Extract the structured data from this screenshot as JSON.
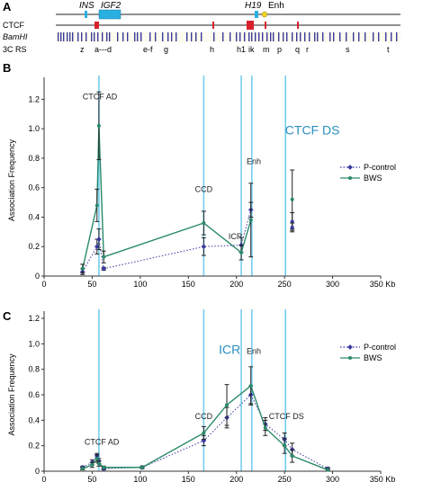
{
  "panel_a": {
    "panel_letter": "A",
    "row_labels": [
      "CTCF",
      "BamHI",
      "3C RS"
    ],
    "gene_labels": [
      "INS",
      "IGF2",
      "H19",
      "Enh"
    ],
    "rs_labels": [
      "z",
      "a---d",
      "e-f",
      "g",
      "h",
      "h1",
      "ik",
      "m",
      "p",
      "q",
      "r",
      "s",
      "t"
    ],
    "colors": {
      "gene": "#2ab0e0",
      "ctcf_site": "#d9202a",
      "bamhi": "#3a3a9a",
      "enh": "#f2d22a"
    }
  },
  "chart_data": [
    {
      "type": "line",
      "panel_letter": "B",
      "ylabel": "Association Frequency",
      "xunit": "350 Kb",
      "xlim": [
        0,
        350
      ],
      "ylim": [
        0,
        1.3
      ],
      "xticks": [
        0,
        50,
        100,
        150,
        200,
        250,
        300
      ],
      "yticks": [
        0,
        0.2,
        0.4,
        0.6,
        0.8,
        1.0,
        1.2
      ],
      "ytick_labels": [
        "0",
        "0.2",
        "0.4",
        "0.6",
        "0.8",
        "1.0",
        "1.2"
      ],
      "vlines": [
        57,
        166,
        205,
        216,
        251
      ],
      "legend_position": "right",
      "series": [
        {
          "name": "P-control",
          "color": "#3a3aa0",
          "style": "dotted",
          "x": [
            40,
            55,
            57,
            62,
            166,
            205,
            215
          ],
          "y": [
            0.03,
            0.2,
            0.25,
            0.05,
            0.2,
            0.21,
            0.45
          ],
          "err": [
            0.02,
            0.05,
            0.07,
            0.01,
            0.06,
            0.05,
            0.05
          ]
        },
        {
          "name": "BWS",
          "color": "#2a8a6a",
          "style": "solid",
          "x": [
            40,
            55,
            57,
            62,
            166,
            205,
            215
          ],
          "y": [
            0.05,
            0.48,
            1.02,
            0.13,
            0.36,
            0.16,
            0.38
          ],
          "err": [
            0.03,
            0.11,
            0.23,
            0.04,
            0.08,
            0.05,
            0.25
          ]
        }
      ],
      "unconnected_points": [
        {
          "x": 258,
          "y": 0.52,
          "err": 0.2,
          "color": "#2a8a6a"
        },
        {
          "x": 258,
          "y": 0.37,
          "err": 0.06,
          "color": "#3a3aa0"
        },
        {
          "x": 258,
          "y": 0.33,
          "err": 0.03,
          "color": "#3a3aa0"
        }
      ],
      "annotations": [
        {
          "text": "CTCF AD",
          "x": 58,
          "y": 1.2,
          "size": "small",
          "color": "#222"
        },
        {
          "text": "CCD",
          "x": 166,
          "y": 0.57,
          "size": "small",
          "color": "#222"
        },
        {
          "text": "ICR",
          "x": 199,
          "y": 0.25,
          "size": "small",
          "color": "#222"
        },
        {
          "text": "Enh",
          "x": 218,
          "y": 0.76,
          "size": "small",
          "color": "#222"
        },
        {
          "text": "CTCF DS",
          "x": 279,
          "y": 0.96,
          "size": "large",
          "color": "#2a8fc0"
        }
      ]
    },
    {
      "type": "line",
      "panel_letter": "C",
      "ylabel": "Association Frequency",
      "xunit": "350 Kb",
      "xlim": [
        0,
        350
      ],
      "ylim": [
        0,
        1.2
      ],
      "xticks": [
        0,
        50,
        100,
        150,
        200,
        250,
        300
      ],
      "yticks": [
        0,
        0.2,
        0.4,
        0.6,
        0.8,
        1.0,
        1.2
      ],
      "ytick_labels": [
        "0",
        "0.2",
        "0.4",
        "0.6",
        "0.8",
        "1.0",
        "1.2"
      ],
      "vlines": [
        57,
        166,
        205,
        216,
        251
      ],
      "legend_position": "right",
      "series": [
        {
          "name": "P-control",
          "color": "#3a3aa0",
          "style": "dotted",
          "x": [
            40,
            50,
            55,
            57,
            62,
            102,
            166,
            190,
            215,
            230,
            250,
            258,
            295
          ],
          "y": [
            0.03,
            0.07,
            0.12,
            0.08,
            0.02,
            0.03,
            0.24,
            0.42,
            0.6,
            0.37,
            0.25,
            0.17,
            0.02
          ],
          "err": [
            0.01,
            0.02,
            0.02,
            0.02,
            0.01,
            0.01,
            0.04,
            0.08,
            0.07,
            0.05,
            0.05,
            0.05,
            0.01
          ]
        },
        {
          "name": "BWS",
          "color": "#2a8a6a",
          "style": "solid",
          "x": [
            40,
            50,
            55,
            57,
            62,
            102,
            166,
            190,
            215,
            230,
            250,
            258,
            295
          ],
          "y": [
            0.02,
            0.05,
            0.1,
            0.06,
            0.03,
            0.03,
            0.3,
            0.52,
            0.67,
            0.34,
            0.2,
            0.12,
            0.01
          ],
          "err": [
            0.01,
            0.02,
            0.03,
            0.02,
            0.01,
            0.01,
            0.05,
            0.16,
            0.15,
            0.06,
            0.06,
            0.05,
            0.01
          ]
        }
      ],
      "unconnected_points": [],
      "annotations": [
        {
          "text": "CTCF AD",
          "x": 60,
          "y": 0.21,
          "size": "small",
          "color": "#222"
        },
        {
          "text": "CCD",
          "x": 166,
          "y": 0.41,
          "size": "small",
          "color": "#222"
        },
        {
          "text": "ICR",
          "x": 193,
          "y": 0.92,
          "size": "large",
          "color": "#2a8fc0"
        },
        {
          "text": "Enh",
          "x": 218,
          "y": 0.92,
          "size": "small",
          "color": "#222"
        },
        {
          "text": "CTCF DS",
          "x": 252,
          "y": 0.41,
          "size": "small",
          "color": "#222"
        }
      ]
    }
  ]
}
